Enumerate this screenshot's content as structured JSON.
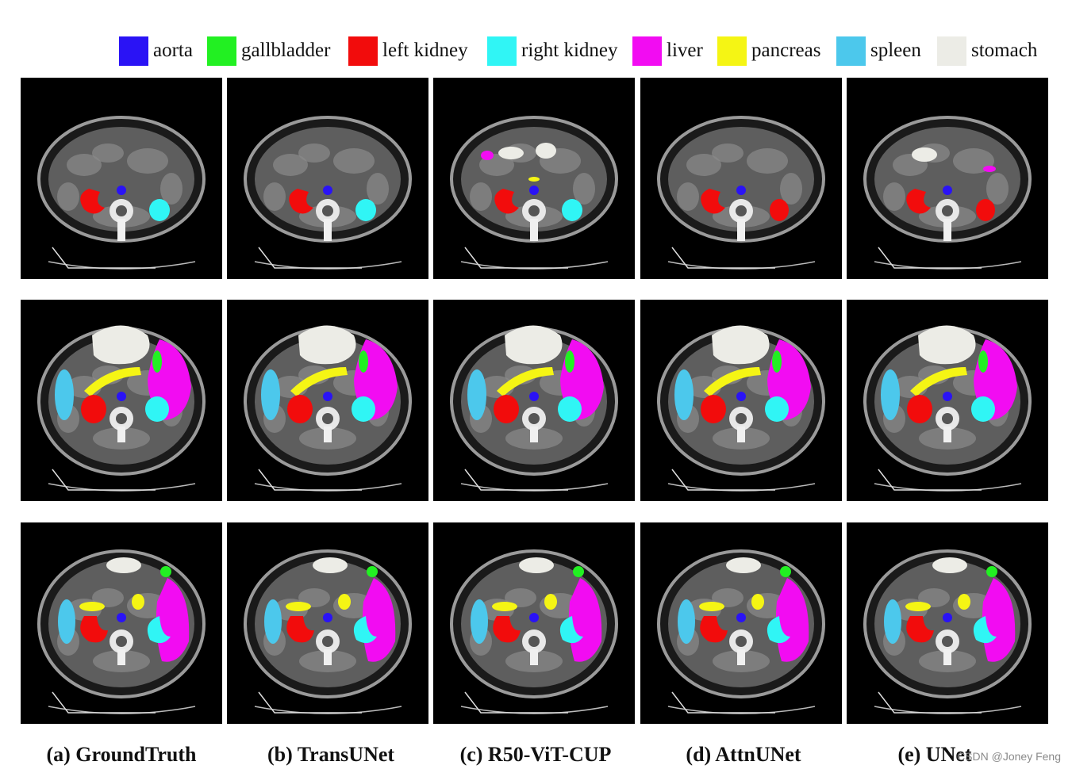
{
  "legend": [
    {
      "label": "aorta",
      "color": "#2a13f5"
    },
    {
      "label": "gallbladder",
      "color": "#22f022"
    },
    {
      "label": "left kidney",
      "color": "#f20c0c"
    },
    {
      "label": "right kidney",
      "color": "#30f5f5"
    },
    {
      "label": "liver",
      "color": "#f20cf2"
    },
    {
      "label": "pancreas",
      "color": "#f5f514"
    },
    {
      "label": "spleen",
      "color": "#4cc8ec"
    },
    {
      "label": "stomach",
      "color": "#ecece6"
    }
  ],
  "columns": [
    {
      "caption": "(a) GroundTruth"
    },
    {
      "caption": "(b) TransUNet"
    },
    {
      "caption": "(c) R50-ViT-CUP"
    },
    {
      "caption": "(d) AttnUNet"
    },
    {
      "caption": "(e) UNet"
    }
  ],
  "rows": 3,
  "watermark": "CSDN @Joney Feng"
}
